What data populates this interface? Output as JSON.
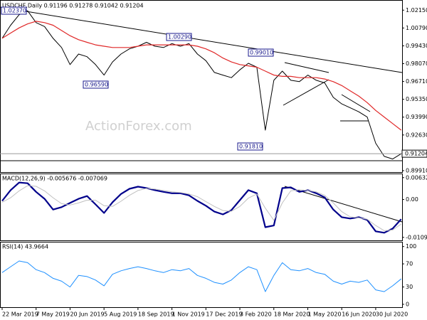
{
  "chart_data": [
    {
      "type": "line",
      "title": "USDCHF,Daily  0.91196 0.91278 0.91042 0.91204",
      "watermark": "ActionForex.com",
      "last_price": 0.91204,
      "categories": [
        "22 Mar 2019",
        null,
        null,
        null,
        "7 May 2019",
        null,
        null,
        null,
        "20 Jun 2019",
        null,
        null,
        null,
        "5 Aug 2019",
        null,
        null,
        null,
        "18 Sep 2019",
        null,
        null,
        null,
        "1 Nov 2019",
        null,
        null,
        null,
        "17 Dec 2019",
        null,
        null,
        null,
        "3 Feb 2020",
        null,
        null,
        null,
        "18 Mar 2020",
        null,
        null,
        null,
        "1 May 2020",
        null,
        null,
        null,
        "16 Jun 2020",
        null,
        null,
        null,
        "30 Jul 2020",
        null,
        null,
        null
      ],
      "series": [
        {
          "color": "#000000",
          "values": [
            1.0,
            1.01,
            1.018,
            1.021,
            1.012,
            1.009,
            1.0,
            0.993,
            0.98,
            0.988,
            0.986,
            0.98,
            0.972,
            0.982,
            0.988,
            0.992,
            0.994,
            0.997,
            0.994,
            0.993,
            0.996,
            0.994,
            0.996,
            0.988,
            0.983,
            0.974,
            0.972,
            0.97,
            0.976,
            0.981,
            0.978,
            0.93,
            0.968,
            0.975,
            0.968,
            0.967,
            0.972,
            0.968,
            0.966,
            0.955,
            0.95,
            0.947,
            0.944,
            0.94,
            0.92,
            0.91,
            0.908,
            0.912
          ]
        },
        {
          "color": "#e02828",
          "values": [
            1.0,
            1.004,
            1.008,
            1.011,
            1.013,
            1.012,
            1.01,
            1.006,
            1.002,
            0.999,
            0.997,
            0.995,
            0.994,
            0.993,
            0.993,
            0.993,
            0.994,
            0.995,
            0.995,
            0.995,
            0.995,
            0.995,
            0.995,
            0.994,
            0.992,
            0.989,
            0.985,
            0.982,
            0.98,
            0.979,
            0.978,
            0.975,
            0.972,
            0.971,
            0.971,
            0.97,
            0.97,
            0.97,
            0.969,
            0.967,
            0.964,
            0.96,
            0.956,
            0.951,
            0.945,
            0.94,
            0.935,
            0.93
          ]
        }
      ],
      "annotations": [
        {
          "text": "1.02370"
        },
        {
          "text": "1.00290"
        },
        {
          "text": "0.96590"
        },
        {
          "text": "0.91810"
        },
        {
          "text": "0.99010"
        }
      ],
      "ylim": [
        0.898,
        1.0287
      ],
      "yticks": [
        {
          "value": 1.0215,
          "label": "1.02150"
        },
        {
          "value": 1.0079,
          "label": "1.00790"
        },
        {
          "value": 0.9943,
          "label": "0.99430"
        },
        {
          "value": 0.9807,
          "label": "0.98070"
        },
        {
          "value": 0.9671,
          "label": "0.96710"
        },
        {
          "value": 0.9535,
          "label": "0.95350"
        },
        {
          "value": 0.9399,
          "label": "0.93990"
        },
        {
          "value": 0.9263,
          "label": "0.92630"
        },
        {
          "value": 0.8991,
          "label": "0.89910"
        }
      ]
    },
    {
      "type": "line",
      "title": "MACD(12,26,9) -0.005676 -0.007069",
      "series": [
        {
          "color": "#00008b",
          "values": [
            -0.0004,
            0.0027,
            0.0049,
            0.0047,
            0.0022,
            0.0002,
            -0.0029,
            -0.0022,
            -0.001,
            0.0002,
            0.001,
            -0.0014,
            -0.0039,
            -0.0008,
            0.0016,
            0.0031,
            0.0037,
            0.0033,
            0.0027,
            0.0022,
            0.0018,
            0.0018,
            0.0012,
            -0.0004,
            -0.0018,
            -0.0035,
            -0.0043,
            -0.0031,
            -0.0002,
            0.0027,
            0.0018,
            -0.008,
            -0.0075,
            0.0033,
            0.0035,
            0.0022,
            0.0027,
            0.0018,
            0.0006,
            -0.0029,
            -0.0051,
            -0.0055,
            -0.0051,
            -0.0059,
            -0.0092,
            -0.0096,
            -0.0084,
            -0.0057
          ]
        },
        {
          "color": "#c0c0c0",
          "values": [
            -0.0008,
            0.0005,
            0.0025,
            0.004,
            0.0038,
            0.0025,
            0.0005,
            -0.0012,
            -0.0016,
            -0.001,
            -0.0002,
            -0.0002,
            -0.0018,
            -0.002,
            -0.0005,
            0.0012,
            0.0026,
            0.0032,
            0.003,
            0.0026,
            0.0022,
            0.002,
            0.0016,
            0.0008,
            -0.0006,
            -0.002,
            -0.0032,
            -0.0034,
            -0.002,
            0.0004,
            0.0016,
            -0.0025,
            -0.006,
            -0.001,
            0.0025,
            0.0028,
            0.0026,
            0.0022,
            0.0012,
            -0.001,
            -0.0035,
            -0.005,
            -0.0053,
            -0.0057,
            -0.0075,
            -0.009,
            -0.0088,
            -0.0071
          ]
        }
      ],
      "ylim": [
        -0.0118,
        0.0073
      ],
      "yticks": [
        0.006321,
        {
          "value": 0,
          "label": "0.00"
        },
        -0.010939
      ]
    },
    {
      "type": "line",
      "title": "RSI(14) 43.9664",
      "series": [
        {
          "color": "#1e90ff",
          "values": [
            55,
            65,
            75,
            72,
            60,
            55,
            45,
            40,
            30,
            50,
            48,
            42,
            32,
            52,
            58,
            62,
            65,
            62,
            58,
            55,
            60,
            58,
            62,
            50,
            45,
            38,
            35,
            42,
            55,
            65,
            60,
            22,
            50,
            72,
            60,
            58,
            62,
            55,
            52,
            40,
            35,
            40,
            38,
            42,
            25,
            22,
            32,
            44
          ]
        }
      ],
      "ylim": [
        -5,
        107
      ],
      "yticks": [
        100,
        70,
        30,
        0
      ]
    }
  ]
}
